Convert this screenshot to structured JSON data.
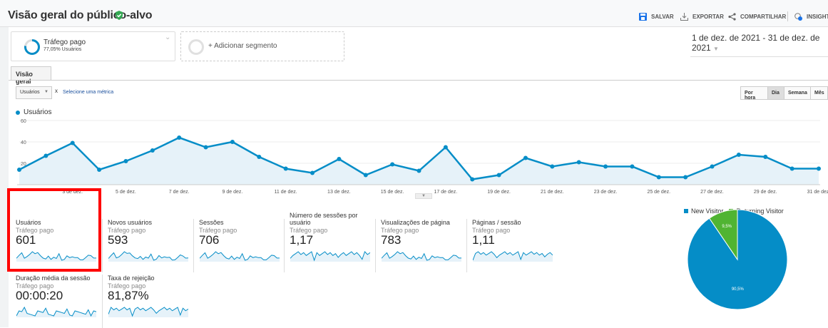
{
  "header": {
    "title": "Visão geral do público-alvo",
    "actions": [
      {
        "label": "SALVAR",
        "icon": "save-icon"
      },
      {
        "label": "EXPORTAR",
        "icon": "download-icon"
      },
      {
        "label": "COMPARTILHAR",
        "icon": "share-icon"
      },
      {
        "label": "INSIGHTS",
        "icon": "insights-icon"
      }
    ]
  },
  "segments": {
    "active": {
      "name": "Tráfego pago",
      "detail": "77,05% Usuários"
    },
    "add_label": "+ Adicionar segmento"
  },
  "date_range": "1 de dez. de 2021 - 31 de dez. de 2021",
  "tabs": [
    {
      "label": "Visão geral",
      "active": true
    }
  ],
  "controls": {
    "metric": "Usuários",
    "remove": "x",
    "select_metric": "Selecione uma métrica",
    "granularity": [
      "Por hora",
      "Dia",
      "Semana",
      "Mês"
    ],
    "granularity_selected": "Dia"
  },
  "colors": {
    "accent": "#058dc7",
    "returning": "#50b432",
    "highlight": "#ff0000"
  },
  "chart_data": [
    {
      "type": "area",
      "series": [
        {
          "name": "Usuários",
          "values": [
            14,
            27,
            39,
            14,
            22,
            32,
            44,
            35,
            40,
            26,
            15,
            11,
            24,
            9,
            19,
            13,
            35,
            5,
            9,
            25,
            17,
            21,
            17,
            17,
            7,
            7,
            17,
            28,
            26,
            15,
            15
          ]
        }
      ],
      "x": [
        "1 de dez.",
        "2 de dez.",
        "3 de dez.",
        "4 de dez.",
        "5 de dez.",
        "6 de dez.",
        "7 de dez.",
        "8 de dez.",
        "9 de dez.",
        "10 de dez.",
        "11 de dez.",
        "12 de dez.",
        "13 de dez.",
        "14 de dez.",
        "15 de dez.",
        "16 de dez.",
        "17 de dez.",
        "18 de dez.",
        "19 de dez.",
        "20 de dez.",
        "21 de dez.",
        "22 de dez.",
        "23 de dez.",
        "24 de dez.",
        "25 de dez.",
        "26 de dez.",
        "27 de dez.",
        "28 de dez.",
        "29 de dez.",
        "30 de dez.",
        "31 de dez."
      ],
      "x_tick_labels": [
        "",
        "3 de dez.",
        "5 de dez.",
        "7 de dez.",
        "9 de dez.",
        "11 de dez.",
        "13 de dez.",
        "15 de dez.",
        "17 de dez.",
        "19 de dez.",
        "21 de dez.",
        "23 de dez.",
        "25 de dez.",
        "27 de dez.",
        "29 de dez.",
        "31 de dez."
      ],
      "y_ticks": [
        "20",
        "40",
        "60"
      ],
      "ylim": [
        0,
        60
      ],
      "grid": true,
      "legend": "top-left"
    },
    {
      "type": "pie",
      "categories": [
        "New Visitor",
        "Returning Visitor"
      ],
      "values": [
        90.5,
        9.5
      ],
      "labels": [
        "90,5%",
        "9,5%"
      ],
      "legend": "top"
    }
  ],
  "metrics": [
    {
      "name": "Usuários",
      "segment": "Tráfego pago",
      "value": "601"
    },
    {
      "name": "Novos usuários",
      "segment": "Tráfego pago",
      "value": "593"
    },
    {
      "name": "Sessões",
      "segment": "Tráfego pago",
      "value": "706"
    },
    {
      "name": "Número de sessões por usuário",
      "segment": "Tráfego pago",
      "value": "1,17"
    },
    {
      "name": "Visualizações de página",
      "segment": "Tráfego pago",
      "value": "783"
    },
    {
      "name": "Páginas / sessão",
      "segment": "Tráfego pago",
      "value": "1,11"
    },
    {
      "name": "Duração média da sessão",
      "segment": "Tráfego pago",
      "value": "00:00:20"
    },
    {
      "name": "Taxa de rejeição",
      "segment": "Tráfego pago",
      "value": "81,87%"
    }
  ]
}
